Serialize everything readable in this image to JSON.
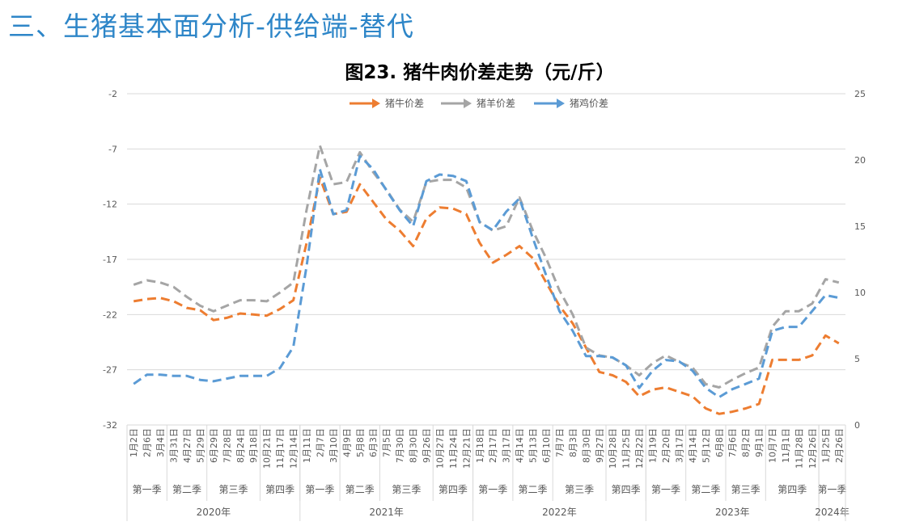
{
  "page": {
    "title": "三、生猪基本面分析-供给端-替代"
  },
  "chart_data": {
    "type": "line",
    "title": "图23. 猪牛肉价差走势（元/斤）",
    "legend_position": "top",
    "grid": true,
    "y_left": {
      "min": -32,
      "max": -2,
      "step": 5,
      "ticks": [
        -2,
        -7,
        -12,
        -17,
        -22,
        -27,
        -32
      ]
    },
    "y_right": {
      "min": 0,
      "max": 25,
      "step": 5,
      "ticks": [
        25,
        20,
        15,
        10,
        5,
        0
      ]
    },
    "categories": [
      "1月2日",
      "2月6日",
      "3月4日",
      "3月31日",
      "4月27日",
      "5月29日",
      "6月29日",
      "7月28日",
      "8月24日",
      "9月18日",
      "10月21日",
      "11月17日",
      "12月14日",
      "1月11日",
      "2月7日",
      "3月10日",
      "4月9日",
      "5月8日",
      "6月3日",
      "7月5日",
      "7月30日",
      "8月30日",
      "9月26日",
      "10月27日",
      "11月24日",
      "12月21日",
      "1月18日",
      "2月17日",
      "3月17日",
      "4月14日",
      "5月13日",
      "6月10日",
      "7月7日",
      "8月3日",
      "8月30日",
      "9月27日",
      "10月28日",
      "11月25日",
      "12月22日",
      "1月19日",
      "2月20日",
      "3月17日",
      "4月14日",
      "5月12日",
      "6月8日",
      "7月6日",
      "8月2日",
      "9月1日",
      "10月7日",
      "11月1日",
      "11月28日",
      "12月26日",
      "1月25日",
      "2月26日"
    ],
    "quarters": [
      {
        "label": "第一季",
        "count": 3
      },
      {
        "label": "第二季",
        "count": 3
      },
      {
        "label": "第三季",
        "count": 4
      },
      {
        "label": "第四季",
        "count": 3
      },
      {
        "label": "第一季",
        "count": 3
      },
      {
        "label": "第二季",
        "count": 3
      },
      {
        "label": "第三季",
        "count": 4
      },
      {
        "label": "第四季",
        "count": 3
      },
      {
        "label": "第一季",
        "count": 3
      },
      {
        "label": "第二季",
        "count": 3
      },
      {
        "label": "第三季",
        "count": 4
      },
      {
        "label": "第四季",
        "count": 3
      },
      {
        "label": "第一季",
        "count": 3
      },
      {
        "label": "第二季",
        "count": 3
      },
      {
        "label": "第三季",
        "count": 3
      },
      {
        "label": "第四季",
        "count": 4
      },
      {
        "label": "第一季",
        "count": 2
      }
    ],
    "years": [
      {
        "label": "2020年",
        "count": 13
      },
      {
        "label": "2021年",
        "count": 13
      },
      {
        "label": "2022年",
        "count": 13
      },
      {
        "label": "2023年",
        "count": 13
      },
      {
        "label": "2024年",
        "count": 2
      }
    ],
    "series": [
      {
        "name": "猪牛价差",
        "axis": "left",
        "color": "#ed7d31",
        "values": [
          -20.8,
          -20.6,
          -20.5,
          -20.8,
          -21.4,
          -21.6,
          -22.5,
          -22.3,
          -21.9,
          -22.0,
          -22.1,
          -21.5,
          -20.7,
          -15.5,
          -9.6,
          -12.9,
          -12.7,
          -10.2,
          -11.8,
          -13.4,
          -14.4,
          -15.8,
          -13.3,
          -12.3,
          -12.4,
          -12.9,
          -15.5,
          -17.3,
          -16.6,
          -15.8,
          -16.9,
          -19.1,
          -21.2,
          -22.8,
          -25.0,
          -27.2,
          -27.5,
          -28.1,
          -29.4,
          -28.8,
          -28.6,
          -29.0,
          -29.4,
          -30.5,
          -31.0,
          -30.8,
          -30.5,
          -30.1,
          -26.1,
          -26.1,
          -26.1,
          -25.7,
          -23.9,
          -24.6
        ]
      },
      {
        "name": "猪羊价差",
        "axis": "left",
        "color": "#a5a5a5",
        "values": [
          -19.3,
          -18.9,
          -19.1,
          -19.5,
          -20.4,
          -21.2,
          -21.7,
          -21.2,
          -20.7,
          -20.7,
          -20.8,
          -20.0,
          -19.1,
          -12.5,
          -6.7,
          -10.2,
          -10.0,
          -7.3,
          -9.1,
          -10.7,
          -12.5,
          -13.6,
          -10.0,
          -9.8,
          -9.8,
          -10.5,
          -13.6,
          -14.4,
          -14.0,
          -11.4,
          -14.4,
          -16.9,
          -19.8,
          -22.0,
          -25.0,
          -25.7,
          -25.9,
          -26.6,
          -27.5,
          -26.4,
          -25.7,
          -26.3,
          -26.8,
          -28.3,
          -28.6,
          -27.9,
          -27.3,
          -26.8,
          -23.1,
          -21.7,
          -21.7,
          -21.0,
          -18.8,
          -19.1
        ]
      },
      {
        "name": "猪鸡价差",
        "axis": "right",
        "color": "#5b9bd5",
        "values": [
          3.1,
          3.8,
          3.8,
          3.7,
          3.7,
          3.4,
          3.3,
          3.5,
          3.7,
          3.7,
          3.7,
          4.3,
          5.9,
          12.0,
          19.3,
          15.9,
          16.2,
          20.3,
          19.3,
          17.7,
          16.2,
          15.0,
          18.4,
          18.9,
          18.8,
          18.4,
          15.3,
          14.7,
          16.1,
          17.1,
          14.1,
          11.3,
          8.6,
          7.1,
          5.2,
          5.2,
          5.1,
          4.5,
          2.8,
          4.1,
          4.9,
          4.8,
          4.1,
          2.8,
          2.1,
          2.7,
          3.1,
          3.5,
          7.1,
          7.4,
          7.4,
          8.6,
          9.8,
          9.6
        ]
      }
    ]
  }
}
